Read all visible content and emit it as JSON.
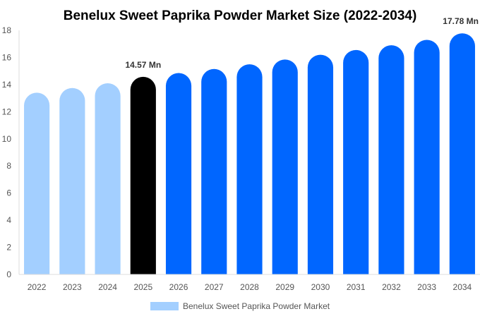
{
  "chart_data": {
    "type": "bar",
    "title": "Benelux Sweet Paprika Powder Market Size (2022-2034)",
    "xlabel": "",
    "ylabel": "",
    "categories": [
      "2022",
      "2023",
      "2024",
      "2025",
      "2026",
      "2027",
      "2028",
      "2029",
      "2030",
      "2031",
      "2032",
      "2033",
      "2034"
    ],
    "series": [
      {
        "name": "Benelux Sweet Paprika Powder Market",
        "values": [
          13.4,
          13.75,
          14.1,
          14.57,
          14.85,
          15.15,
          15.5,
          15.85,
          16.2,
          16.55,
          16.9,
          17.3,
          17.78
        ]
      }
    ],
    "data_labels": [
      {
        "index": 3,
        "text": "14.57 Mn"
      },
      {
        "index": 12,
        "text": "17.78 Mn"
      }
    ],
    "bar_colors": [
      "#a3cfff",
      "#a3cfff",
      "#a3cfff",
      "#000000",
      "#0066ff",
      "#0066ff",
      "#0066ff",
      "#0066ff",
      "#0066ff",
      "#0066ff",
      "#0066ff",
      "#0066ff",
      "#0066ff"
    ],
    "legend_color": "#a3cfff",
    "ylim": [
      0,
      18
    ],
    "yticks": [
      0,
      2,
      4,
      6,
      8,
      10,
      12,
      14,
      16,
      18
    ],
    "grid": false,
    "legend_position": "bottom"
  }
}
